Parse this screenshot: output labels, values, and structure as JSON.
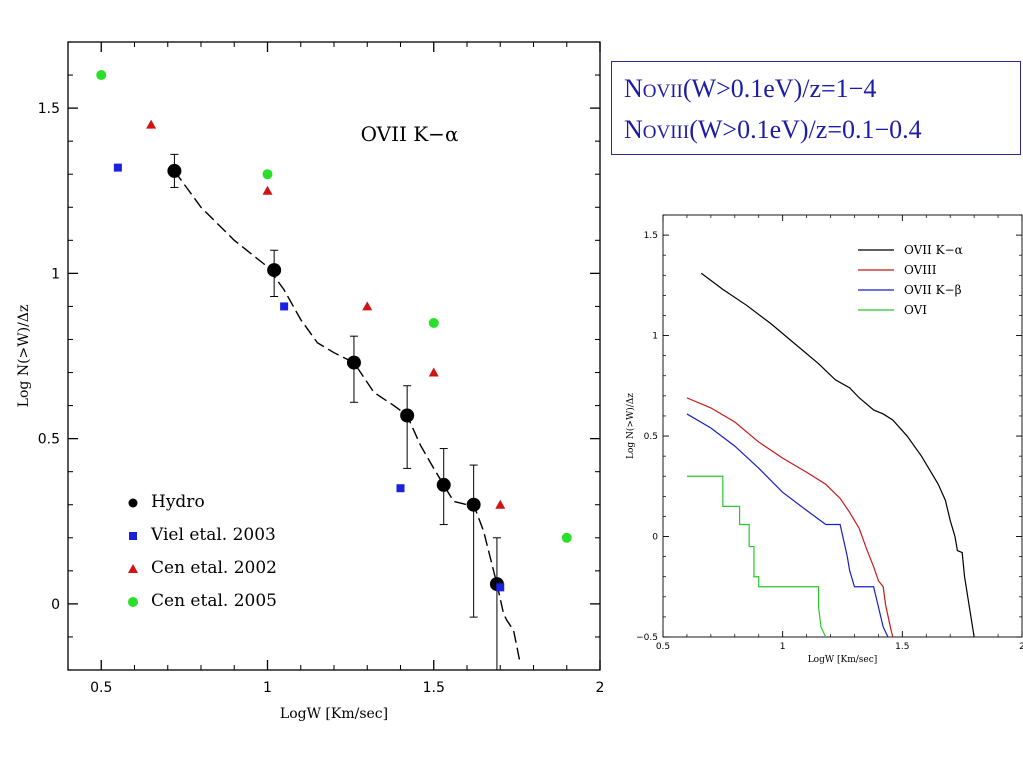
{
  "box_label": {
    "line1": {
      "n": "N",
      "ion": "OVII",
      "cond": "(W>0.1eV)/z=1−4"
    },
    "line2": {
      "n": "N",
      "ion": "OVIII",
      "cond": "(W>0.1eV)/z=0.1−0.4"
    }
  },
  "chart_data": [
    {
      "type": "scatter",
      "title": "OVII K−α",
      "xlabel": "LogW [Km/sec]",
      "ylabel": "Log N(>W)/Δz",
      "xlim": [
        0.4,
        2.0
      ],
      "ylim": [
        -0.2,
        1.7
      ],
      "x_ticks": [
        0.5,
        1,
        1.5,
        2
      ],
      "x_tick_labels": [
        "0.5",
        "1",
        "1.5",
        "2"
      ],
      "y_ticks": [
        0,
        0.5,
        1,
        1.5
      ],
      "y_tick_labels": [
        "0",
        "0.5",
        "1",
        "1.5"
      ],
      "legend_position": "bottom-left",
      "series": [
        {
          "name": "Hydro",
          "marker": "circle-large",
          "color": "#000000",
          "x": [
            0.72,
            1.02,
            1.26,
            1.42,
            1.53,
            1.62,
            1.69
          ],
          "y": [
            1.31,
            1.01,
            0.73,
            0.57,
            0.36,
            0.3,
            0.06
          ],
          "err_low": [
            0.05,
            0.08,
            0.12,
            0.16,
            0.12,
            0.34,
            0.26
          ],
          "err_high": [
            0.05,
            0.06,
            0.08,
            0.09,
            0.11,
            0.12,
            0.14
          ]
        },
        {
          "name": "Viel etal. 2003",
          "marker": "square",
          "color": "#1a22e0",
          "x": [
            0.55,
            1.05,
            1.4,
            1.7
          ],
          "y": [
            1.32,
            0.9,
            0.35,
            0.05
          ]
        },
        {
          "name": "Cen etal. 2002",
          "marker": "triangle",
          "color": "#d01414",
          "x": [
            0.65,
            1.0,
            1.3,
            1.5,
            1.7
          ],
          "y": [
            1.45,
            1.25,
            0.9,
            0.7,
            0.3
          ]
        },
        {
          "name": "Cen etal. 2005",
          "marker": "circle",
          "color": "#28e028",
          "x": [
            0.5,
            1.0,
            1.5,
            1.9
          ],
          "y": [
            1.6,
            1.3,
            0.85,
            0.2
          ]
        }
      ],
      "model_curve": {
        "color": "#000000",
        "style": "dashed",
        "x": [
          0.72,
          0.8,
          0.9,
          1.0,
          1.05,
          1.1,
          1.15,
          1.2,
          1.26,
          1.32,
          1.38,
          1.42,
          1.46,
          1.5,
          1.53,
          1.56,
          1.6,
          1.62,
          1.65,
          1.69,
          1.71,
          1.72,
          1.74,
          1.76
        ],
        "y": [
          1.31,
          1.2,
          1.1,
          1.02,
          0.95,
          0.86,
          0.79,
          0.76,
          0.73,
          0.64,
          0.6,
          0.57,
          0.48,
          0.41,
          0.36,
          0.31,
          0.3,
          0.3,
          0.22,
          0.06,
          -0.03,
          -0.05,
          -0.08,
          -0.18
        ]
      }
    },
    {
      "type": "line",
      "xlabel": "LogW [Km/sec]",
      "ylabel": "Log N(>W)/Δz",
      "xlim": [
        0.5,
        2.0
      ],
      "ylim": [
        -0.5,
        1.6
      ],
      "x_ticks": [
        0.5,
        1,
        1.5,
        2
      ],
      "x_tick_labels": [
        "0.5",
        "1",
        "1.5",
        "2"
      ],
      "y_ticks": [
        -0.5,
        0,
        0.5,
        1,
        1.5
      ],
      "y_tick_labels": [
        "−0.5",
        "0",
        "0.5",
        "1",
        "1.5"
      ],
      "legend_position": "top-right",
      "series": [
        {
          "name": "OVII K−α",
          "color": "#000000",
          "x": [
            0.66,
            0.75,
            0.85,
            0.95,
            1.05,
            1.15,
            1.22,
            1.28,
            1.32,
            1.38,
            1.42,
            1.46,
            1.52,
            1.58,
            1.62,
            1.65,
            1.68,
            1.7,
            1.72,
            1.73,
            1.75,
            1.76,
            1.78,
            1.8
          ],
          "y": [
            1.31,
            1.23,
            1.15,
            1.06,
            0.96,
            0.86,
            0.78,
            0.74,
            0.69,
            0.63,
            0.61,
            0.58,
            0.5,
            0.4,
            0.32,
            0.26,
            0.18,
            0.08,
            0.0,
            -0.07,
            -0.08,
            -0.2,
            -0.35,
            -0.5
          ]
        },
        {
          "name": "OVIII",
          "color": "#c81818",
          "x": [
            0.6,
            0.7,
            0.8,
            0.9,
            1.0,
            1.1,
            1.18,
            1.24,
            1.28,
            1.32,
            1.35,
            1.38,
            1.4,
            1.42,
            1.43,
            1.45,
            1.46
          ],
          "y": [
            0.69,
            0.64,
            0.57,
            0.47,
            0.39,
            0.32,
            0.26,
            0.19,
            0.12,
            0.04,
            -0.06,
            -0.15,
            -0.22,
            -0.25,
            -0.34,
            -0.45,
            -0.5
          ]
        },
        {
          "name": "OVII K−β",
          "color": "#1820c0",
          "x": [
            0.6,
            0.7,
            0.8,
            0.9,
            1.0,
            1.1,
            1.18,
            1.24,
            1.27,
            1.28,
            1.3,
            1.38,
            1.4,
            1.42,
            1.44
          ],
          "y": [
            0.61,
            0.54,
            0.45,
            0.34,
            0.22,
            0.13,
            0.06,
            0.06,
            -0.1,
            -0.17,
            -0.25,
            -0.25,
            -0.35,
            -0.45,
            -0.5
          ]
        },
        {
          "name": "OVI",
          "color": "#28c828",
          "x": [
            0.6,
            0.75,
            0.75,
            0.82,
            0.82,
            0.86,
            0.86,
            0.88,
            0.88,
            0.9,
            0.9,
            1.15,
            1.15,
            1.16,
            1.18
          ],
          "y": [
            0.3,
            0.3,
            0.15,
            0.15,
            0.06,
            0.06,
            -0.05,
            -0.05,
            -0.2,
            -0.2,
            -0.25,
            -0.25,
            -0.35,
            -0.45,
            -0.5
          ]
        }
      ]
    }
  ]
}
